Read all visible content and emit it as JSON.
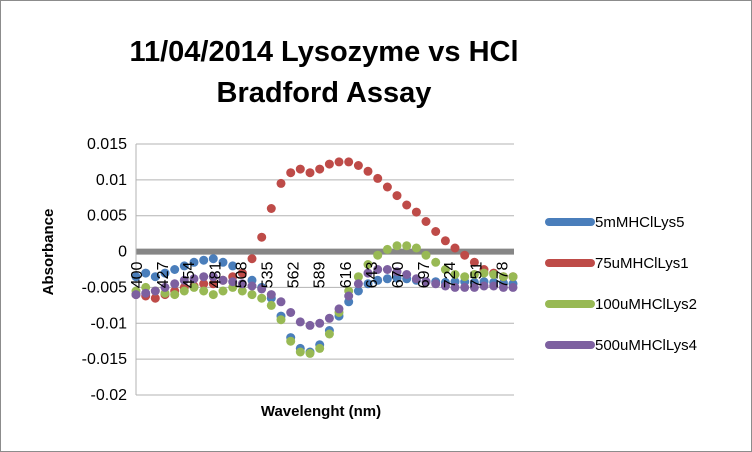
{
  "chart_data": {
    "type": "scatter",
    "title": [
      "11/04/2014 Lysozyme vs HCl",
      "Bradford Assay"
    ],
    "xlabel": "Wavelenght (nm)",
    "ylabel": "Absorbance",
    "ylim": [
      -0.02,
      0.015
    ],
    "yticks": [
      0.015,
      0.01,
      0.005,
      0,
      -0.005,
      -0.01,
      -0.015,
      -0.02
    ],
    "ytick_labels": [
      "0.015",
      "0.01",
      "0.005",
      "0",
      "-0.005",
      "-0.01",
      "-0.015",
      "-0.02"
    ],
    "xlim": [
      400,
      791
    ],
    "xticks": [
      400,
      427,
      454,
      481,
      508,
      535,
      562,
      589,
      616,
      643,
      670,
      697,
      724,
      751,
      778
    ],
    "xtick_labels": [
      "400",
      "427",
      "454",
      "481",
      "508",
      "535",
      "562",
      "589",
      "616",
      "643",
      "670",
      "697",
      "724",
      "751",
      "778"
    ],
    "grid": "horizontal",
    "legend": "right",
    "series": [
      {
        "name": "5mMHClLys5",
        "color": "#4a7ebb",
        "x": [
          400,
          410,
          420,
          430,
          440,
          450,
          460,
          470,
          480,
          490,
          500,
          510,
          520,
          530,
          540,
          550,
          560,
          570,
          580,
          590,
          600,
          610,
          620,
          630,
          640,
          650,
          660,
          670,
          680,
          690,
          700,
          710,
          720,
          730,
          740,
          750,
          760,
          770,
          780,
          790
        ],
        "y": [
          -0.0035,
          -0.003,
          -0.0035,
          -0.003,
          -0.0025,
          -0.002,
          -0.0015,
          -0.0012,
          -0.001,
          -0.0015,
          -0.002,
          -0.003,
          -0.004,
          -0.005,
          -0.0065,
          -0.009,
          -0.012,
          -0.0135,
          -0.014,
          -0.013,
          -0.011,
          -0.009,
          -0.007,
          -0.0055,
          -0.0045,
          -0.004,
          -0.0038,
          -0.0037,
          -0.0038,
          -0.004,
          -0.0042,
          -0.0042,
          -0.0043,
          -0.0042,
          -0.0042,
          -0.0043,
          -0.0042,
          -0.0043,
          -0.0044,
          -0.0045
        ]
      },
      {
        "name": "75uMHClLys1",
        "color": "#be4b48",
        "x": [
          400,
          410,
          420,
          430,
          440,
          450,
          460,
          470,
          480,
          490,
          500,
          510,
          520,
          530,
          540,
          550,
          560,
          570,
          580,
          590,
          600,
          610,
          620,
          630,
          640,
          650,
          660,
          670,
          680,
          690,
          700,
          710,
          720,
          730,
          740,
          750,
          760,
          770,
          780,
          790
        ],
        "y": [
          -0.006,
          -0.0062,
          -0.0065,
          -0.006,
          -0.0055,
          -0.005,
          -0.0048,
          -0.0045,
          -0.0045,
          -0.004,
          -0.0035,
          -0.003,
          -0.001,
          0.002,
          0.006,
          0.0095,
          0.011,
          0.0115,
          0.011,
          0.0115,
          0.0122,
          0.0125,
          0.0125,
          0.012,
          0.0112,
          0.0102,
          0.009,
          0.0078,
          0.0065,
          0.0055,
          0.0042,
          0.0028,
          0.0015,
          0.0005,
          -0.0005,
          -0.0015,
          -0.0025,
          -0.003,
          -0.0035,
          -0.0035
        ]
      },
      {
        "name": "100uMHClLys2",
        "color": "#98b954",
        "x": [
          400,
          410,
          420,
          430,
          440,
          450,
          460,
          470,
          480,
          490,
          500,
          510,
          520,
          530,
          540,
          550,
          560,
          570,
          580,
          590,
          600,
          610,
          620,
          630,
          640,
          650,
          660,
          670,
          680,
          690,
          700,
          710,
          720,
          730,
          740,
          750,
          760,
          770,
          780,
          790
        ],
        "y": [
          -0.0055,
          -0.005,
          -0.0055,
          -0.0058,
          -0.006,
          -0.0055,
          -0.005,
          -0.0055,
          -0.006,
          -0.0055,
          -0.005,
          -0.0055,
          -0.006,
          -0.0065,
          -0.0075,
          -0.0095,
          -0.0125,
          -0.014,
          -0.0142,
          -0.0135,
          -0.0115,
          -0.0085,
          -0.0055,
          -0.0035,
          -0.0018,
          -0.0005,
          0.0003,
          0.0008,
          0.0008,
          0.0005,
          -0.0005,
          -0.0015,
          -0.0025,
          -0.0032,
          -0.0035,
          -0.0032,
          -0.003,
          -0.0032,
          -0.0035,
          -0.0035
        ]
      },
      {
        "name": "500uMHClLys4",
        "color": "#7d60a0",
        "x": [
          400,
          410,
          420,
          430,
          440,
          450,
          460,
          470,
          480,
          490,
          500,
          510,
          520,
          530,
          540,
          550,
          560,
          570,
          580,
          590,
          600,
          610,
          620,
          630,
          640,
          650,
          660,
          670,
          680,
          690,
          700,
          710,
          720,
          730,
          740,
          750,
          760,
          770,
          780,
          790
        ],
        "y": [
          -0.006,
          -0.0058,
          -0.0055,
          -0.005,
          -0.0045,
          -0.004,
          -0.0038,
          -0.0035,
          -0.0035,
          -0.004,
          -0.0042,
          -0.0045,
          -0.0048,
          -0.0052,
          -0.006,
          -0.007,
          -0.0085,
          -0.0098,
          -0.0103,
          -0.01,
          -0.0093,
          -0.008,
          -0.0062,
          -0.0045,
          -0.003,
          -0.0025,
          -0.0025,
          -0.0028,
          -0.0032,
          -0.0038,
          -0.0042,
          -0.0045,
          -0.0048,
          -0.005,
          -0.005,
          -0.005,
          -0.0048,
          -0.0048,
          -0.005,
          -0.005
        ]
      }
    ]
  }
}
